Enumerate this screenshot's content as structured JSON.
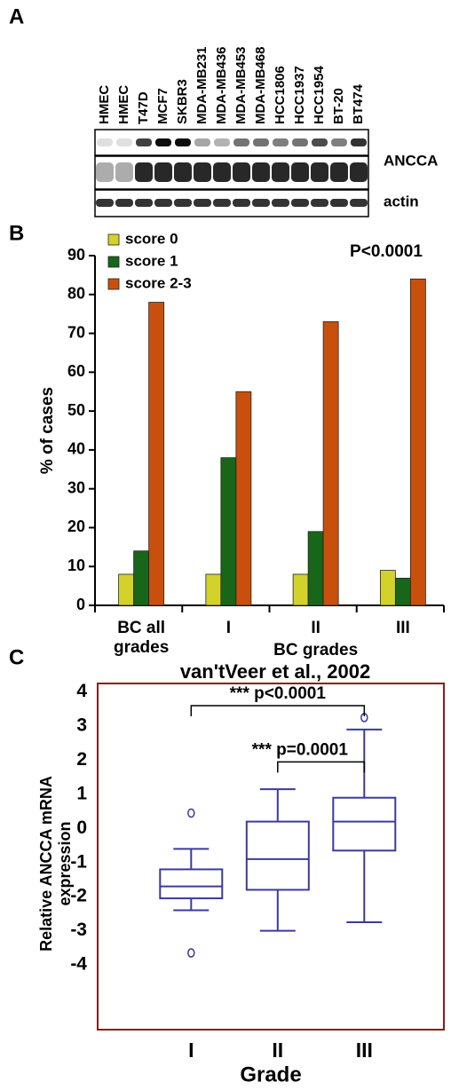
{
  "blot": {
    "label": "A",
    "lanes": [
      "HMEC",
      "HMEC",
      "T47D",
      "MCF7",
      "SKBR3",
      "MDA-MB231",
      "MDA-MB436",
      "MDA-MB453",
      "MDA-MB468",
      "HCC1806",
      "HCC1937",
      "HCC1954",
      "BT-20",
      "BT474"
    ],
    "rows": [
      "ANCCA",
      "actin"
    ]
  },
  "chart_data": [
    {
      "type": "bar",
      "label": "B",
      "ylabel": "% of cases",
      "categories": [
        "BC all grades",
        "I",
        "II",
        "III"
      ],
      "group_label": "BC grades",
      "annotation": "P<0.0001",
      "series": [
        {
          "name": "score 0",
          "color": "#d2d22a",
          "values": [
            8,
            8,
            8,
            9
          ]
        },
        {
          "name": "score 1",
          "color": "#17661a",
          "values": [
            14,
            38,
            19,
            7
          ]
        },
        {
          "name": "score 2-3",
          "color": "#c9500c",
          "values": [
            78,
            55,
            73,
            84
          ]
        }
      ],
      "ylim": [
        0,
        90
      ],
      "yticks": [
        0,
        10,
        20,
        30,
        40,
        50,
        60,
        70,
        80,
        90
      ],
      "legend": "upper left"
    },
    {
      "type": "box",
      "label": "C",
      "title": "van'tVeer et al., 2002",
      "ylabel": "Relative ANCCA mRNA expression",
      "xlabel": "Grade",
      "categories": [
        "I",
        "II",
        "III"
      ],
      "color": "#3a3aa0",
      "frame_color": "#8b1c1c",
      "boxes": [
        {
          "whisker_low": -2.4,
          "q1": -2.05,
          "median": -1.7,
          "q3": -1.2,
          "whisker_high": -0.6,
          "outliers": [
            0.45,
            -3.65
          ]
        },
        {
          "whisker_low": -3.0,
          "q1": -1.8,
          "median": -0.9,
          "q3": 0.2,
          "whisker_high": 1.15,
          "outliers": []
        },
        {
          "whisker_low": -2.75,
          "q1": -0.65,
          "median": 0.2,
          "q3": 0.9,
          "whisker_high": 2.9,
          "outliers": [
            3.25
          ]
        }
      ],
      "annotations": [
        "*** p<0.0001",
        "*** p=0.0001"
      ],
      "ylim": [
        -5.9,
        4.25
      ],
      "yticks": [
        4,
        3,
        2,
        1,
        0,
        -1,
        -2,
        -3,
        -4
      ]
    }
  ]
}
